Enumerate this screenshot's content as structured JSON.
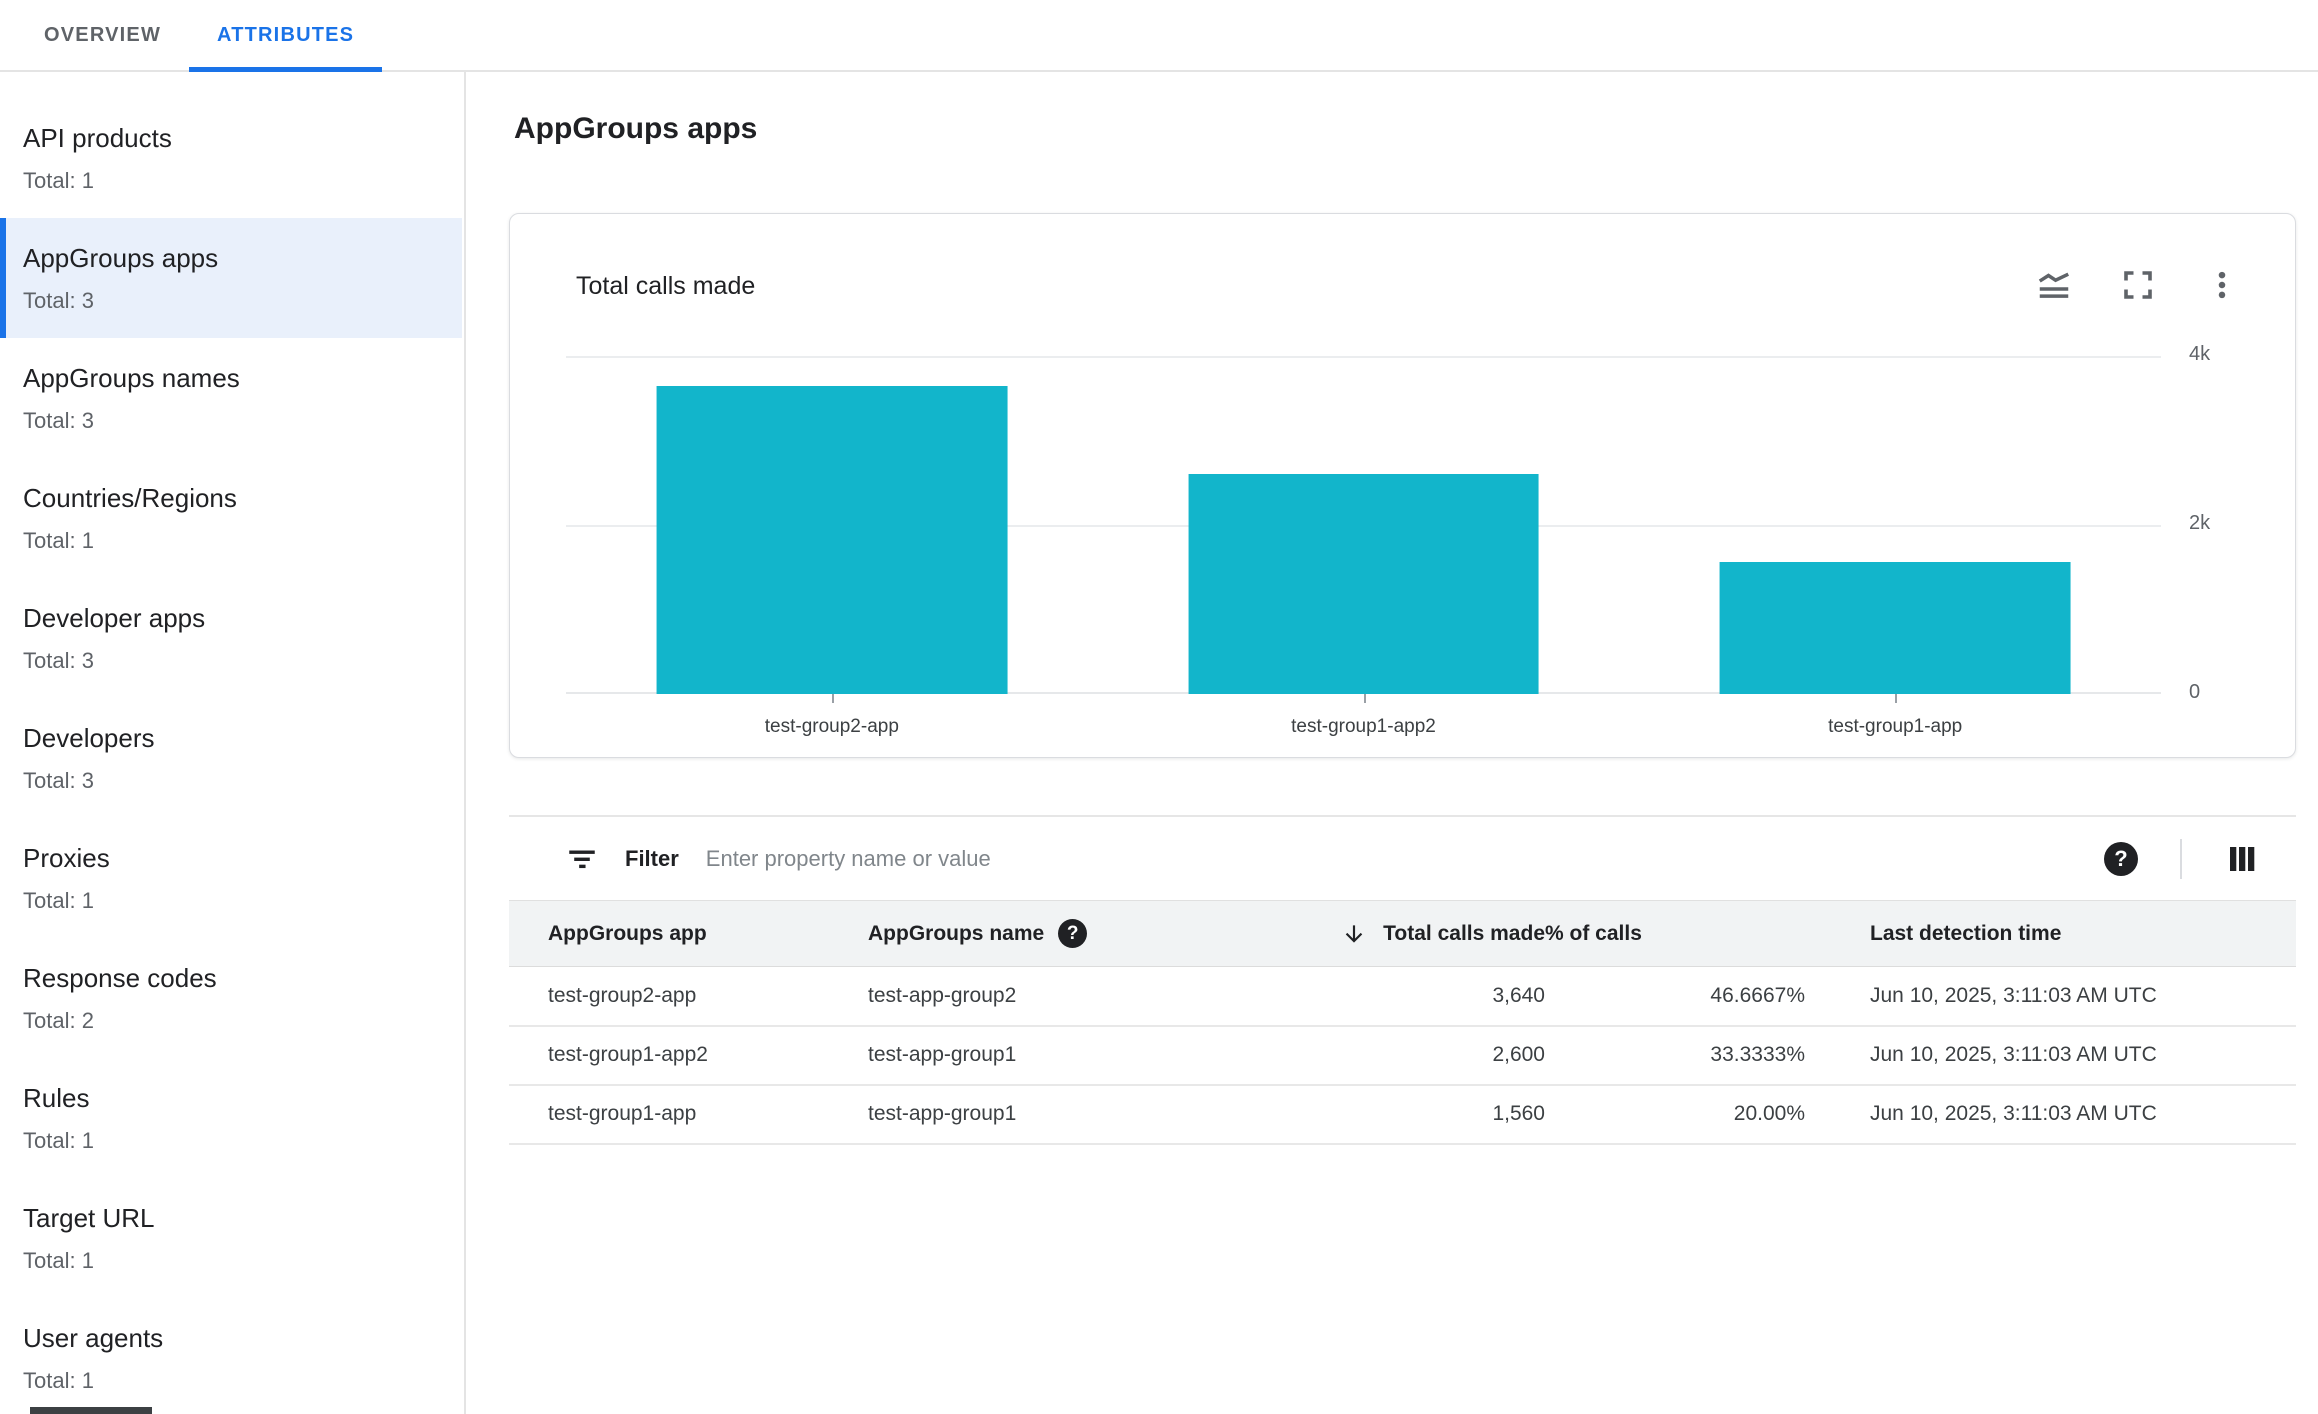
{
  "tabs": [
    {
      "label": "OVERVIEW",
      "active": false
    },
    {
      "label": "ATTRIBUTES",
      "active": true
    }
  ],
  "sidebar": {
    "items": [
      {
        "label": "API products",
        "total": "Total: 1"
      },
      {
        "label": "AppGroups apps",
        "total": "Total: 3"
      },
      {
        "label": "AppGroups names",
        "total": "Total: 3"
      },
      {
        "label": "Countries/Regions",
        "total": "Total: 1"
      },
      {
        "label": "Developer apps",
        "total": "Total: 3"
      },
      {
        "label": "Developers",
        "total": "Total: 3"
      },
      {
        "label": "Proxies",
        "total": "Total: 1"
      },
      {
        "label": "Response codes",
        "total": "Total: 2"
      },
      {
        "label": "Rules",
        "total": "Total: 1"
      },
      {
        "label": "Target URL",
        "total": "Total: 1"
      },
      {
        "label": "User agents",
        "total": "Total: 1"
      }
    ],
    "selected": "AppGroups apps"
  },
  "page": {
    "title": "AppGroups apps"
  },
  "chart_card": {
    "title": "Total calls made",
    "icons": [
      "stacked-line-chart-icon",
      "fullscreen-icon",
      "more-vert-icon"
    ]
  },
  "chart_data": {
    "type": "bar",
    "title": "Total calls made",
    "categories": [
      "test-group2-app",
      "test-group1-app2",
      "test-group1-app"
    ],
    "values": [
      3640,
      2600,
      1560
    ],
    "xlabel": "",
    "ylabel": "",
    "ylim": [
      0,
      4000
    ],
    "yticks": [
      {
        "value": 4000,
        "label": "4k"
      },
      {
        "value": 2000,
        "label": "2k"
      },
      {
        "value": 0,
        "label": "0"
      }
    ],
    "grid": true,
    "legend_position": "none",
    "bar_color": "#12b5cb"
  },
  "filter": {
    "label": "Filter",
    "placeholder": "Enter property name or value",
    "value": ""
  },
  "table": {
    "columns": [
      {
        "label": "AppGroups app"
      },
      {
        "label": "AppGroups name",
        "help": true
      },
      {
        "label": "Total calls made",
        "sort": "desc",
        "align": "right"
      },
      {
        "label": "% of calls",
        "align": "right"
      },
      {
        "label": "Last detection time"
      }
    ],
    "rows": [
      {
        "app": "test-group2-app",
        "name": "test-app-group2",
        "calls": "3,640",
        "pct": "46.6667%",
        "time": "Jun 10, 2025, 3:11:03 AM UTC"
      },
      {
        "app": "test-group1-app2",
        "name": "test-app-group1",
        "calls": "2,600",
        "pct": "33.3333%",
        "time": "Jun 10, 2025, 3:11:03 AM UTC"
      },
      {
        "app": "test-group1-app",
        "name": "test-app-group1",
        "calls": "1,560",
        "pct": "20.00%",
        "time": "Jun 10, 2025, 3:11:03 AM UTC"
      }
    ]
  },
  "colors": {
    "accent_blue": "#1a73e8",
    "selected_bg": "#e9f0fb",
    "bar_teal": "#12b5cb",
    "text_dark": "#202124",
    "text_gray": "#5f6368",
    "border": "#e0e0e0",
    "header_bg": "#f1f3f4"
  }
}
